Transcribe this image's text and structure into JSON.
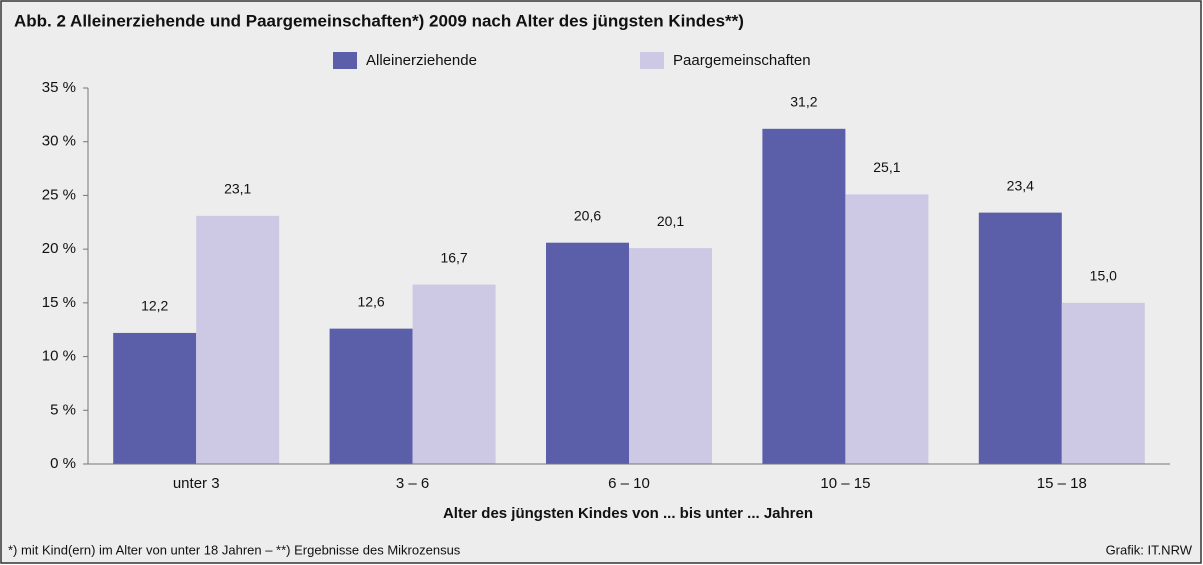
{
  "chart_data": {
    "type": "bar",
    "title": "Abb. 2  Alleinerziehende und Paargemeinschaften*) 2009 nach Alter des jüngsten Kindes**)",
    "x_label": "Alter des jüngsten Kindes von ... bis unter ... Jahren",
    "footnote": "*) mit Kind(ern) im Alter von unter 18 Jahren – **) Ergebnisse des Mikrozensus",
    "source": "Grafik: IT.NRW",
    "categories": [
      "unter 3",
      "3 – 6",
      "6 – 10",
      "10 – 15",
      "15 – 18"
    ],
    "series": [
      {
        "name": "Alleinerziehende",
        "color": "#5b5ea8",
        "values": [
          12.2,
          12.6,
          20.6,
          31.2,
          23.4
        ],
        "value_labels": [
          "12,2",
          "12,6",
          "20,6",
          "31,2",
          "23,4"
        ]
      },
      {
        "name": "Paargemeinschaften",
        "color": "#cdc9e5",
        "values": [
          23.1,
          16.7,
          20.1,
          25.1,
          15.0
        ],
        "value_labels": [
          "23,1",
          "16,7",
          "20,1",
          "25,1",
          "15,0"
        ]
      }
    ],
    "ylim": [
      0,
      35
    ],
    "yticks": [
      {
        "value": 0,
        "label": "0 %"
      },
      {
        "value": 5,
        "label": "5 %"
      },
      {
        "value": 10,
        "label": "10 %"
      },
      {
        "value": 15,
        "label": "15 %"
      },
      {
        "value": 20,
        "label": "20 %"
      },
      {
        "value": 25,
        "label": "25 %"
      },
      {
        "value": 30,
        "label": "30 %"
      },
      {
        "value": 35,
        "label": "35 %"
      }
    ],
    "grid": false
  }
}
